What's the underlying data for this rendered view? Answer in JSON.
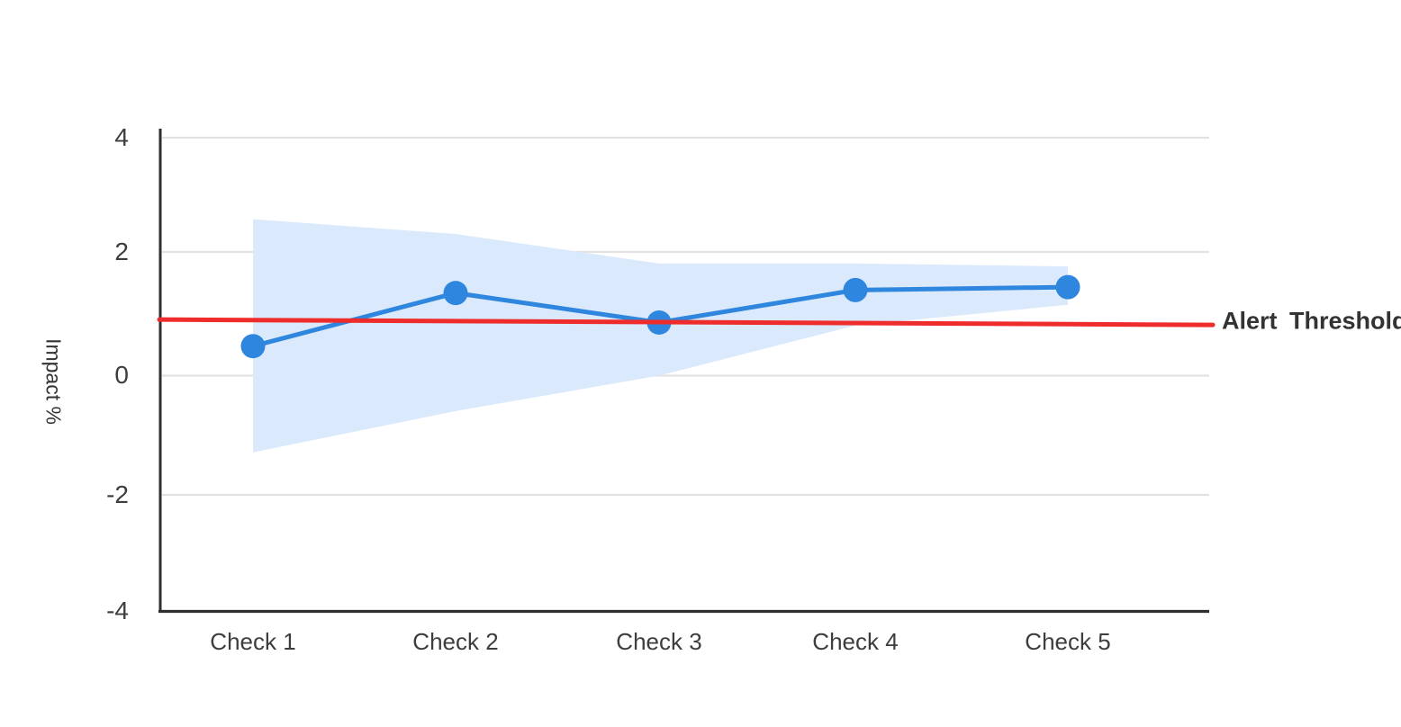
{
  "chart_data": {
    "type": "line",
    "title": "",
    "ylabel": "Impact %",
    "xlabel": "",
    "categories": [
      "Check 1",
      "Check 2",
      "Check 3",
      "Check 4",
      "Check 5"
    ],
    "series": [
      {
        "name": "Impact",
        "style": "line+markers",
        "values": [
          0.5,
          1.4,
          0.9,
          1.45,
          1.5
        ],
        "color": "#2e86de"
      },
      {
        "name": "Confidence band",
        "style": "band",
        "upper": [
          2.65,
          2.4,
          1.9,
          1.9,
          1.85
        ],
        "lower": [
          -1.3,
          -0.6,
          0.0,
          0.85,
          1.2
        ],
        "color": "#dbe9fc"
      }
    ],
    "threshold": {
      "label": "Alert Threshold",
      "start": 0.95,
      "end": 0.86,
      "color": "#ee2c2c"
    },
    "ylim": [
      -4,
      4
    ],
    "y_ticks": [
      4,
      2,
      0,
      -2,
      -4
    ],
    "y_tick_labels": [
      "4",
      "2",
      "0",
      "-2",
      "-4"
    ],
    "gridlines_at": [
      4,
      2,
      0,
      -2
    ],
    "grid": true,
    "legend": "none",
    "colors": {
      "axis": "#2f2f2f",
      "grid": "#e2e2e2",
      "tick_text": "#3d3d3d",
      "background": "#ffffff"
    }
  }
}
